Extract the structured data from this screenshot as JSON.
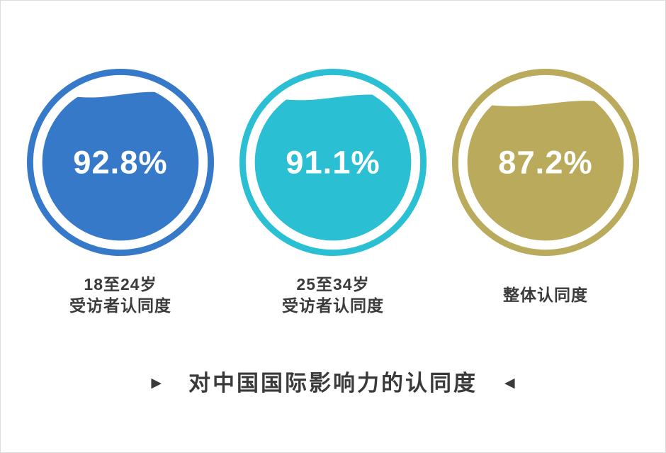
{
  "title": {
    "text": "对中国国际影响力的认同度",
    "left_arrow": "▶",
    "right_arrow": "◀"
  },
  "chart_data": {
    "type": "liquid_gauge",
    "title": "对中国国际影响力的认同度",
    "unit": "%",
    "value_range": [
      0,
      100
    ],
    "legend_position": "none",
    "series": [
      {
        "label": "18至24岁受访者认同度",
        "label_line1": "18至24岁",
        "label_line2": "受访者认同度",
        "value": 92.8,
        "display_value": "92.8%",
        "color": "#3579c8"
      },
      {
        "label": "25至34岁受访者认同度",
        "label_line1": "25至34岁",
        "label_line2": "受访者认同度",
        "value": 91.1,
        "display_value": "91.1%",
        "color": "#2bbfd3"
      },
      {
        "label": "整体认同度",
        "label_line1": "整体认同度",
        "label_line2": "",
        "value": 87.2,
        "display_value": "87.2%",
        "color": "#b9aa5c"
      }
    ],
    "colors": {
      "label_text": "#3b3b3b",
      "title_text": "#3a3a3a",
      "value_text": "#ffffff",
      "background": "#ffffff"
    }
  }
}
